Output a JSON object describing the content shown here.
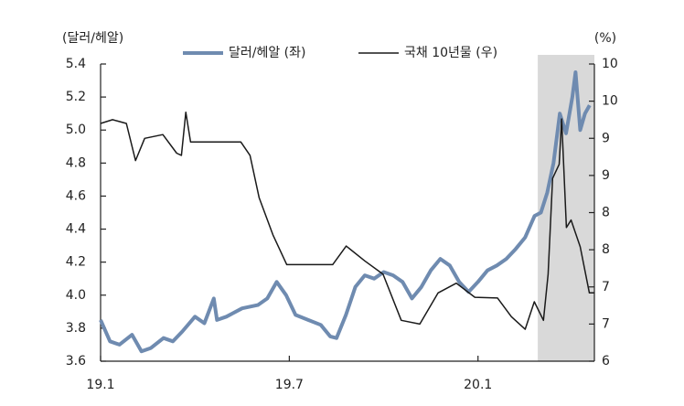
{
  "chart_data": {
    "type": "line",
    "y_label": "(달러/헤알)",
    "y2_label": "(%)",
    "xlim": [
      0,
      15.7
    ],
    "xticks": [
      {
        "value": 0,
        "label": "19.1"
      },
      {
        "value": 6,
        "label": "19.7"
      },
      {
        "value": 12,
        "label": "20.1"
      }
    ],
    "ylim": [
      3.6,
      5.4
    ],
    "yticks": [
      3.6,
      3.8,
      {
        "value": 4,
        "label": "4.0"
      },
      4.2,
      4.4,
      4.6,
      4.8,
      {
        "value": 5,
        "label": "5.0"
      },
      5.2,
      5.4
    ],
    "y2lim": [
      6,
      10
    ],
    "y2ticks": [
      6,
      {
        "value": 6.5,
        "label": "7"
      },
      7,
      {
        "value": 7.5,
        "label": "8"
      },
      8,
      {
        "value": 8.5,
        "label": "9"
      },
      9,
      {
        "value": 9.5,
        "label": "10"
      },
      10
    ],
    "highlight_xlim": [
      13.9,
      15.7
    ],
    "highlight_color": "#d9d9d9",
    "series": [
      {
        "name": "달러/헤알 (좌)",
        "color": "#6f8bb0",
        "width": 4,
        "x": [
          0,
          0.3,
          0.6,
          1.0,
          1.3,
          1.6,
          2.0,
          2.3,
          2.6,
          3.0,
          3.3,
          3.6,
          3.7,
          4.0,
          4.5,
          5.0,
          5.3,
          5.6,
          5.9,
          6.2,
          6.6,
          7.0,
          7.3,
          7.5,
          7.8,
          8.1,
          8.4,
          8.7,
          9.0,
          9.3,
          9.6,
          9.9,
          10.2,
          10.5,
          10.8,
          11.1,
          11.4,
          11.7,
          12.0,
          12.3,
          12.6,
          12.9,
          13.2,
          13.5,
          13.8,
          14.0,
          14.2,
          14.4,
          14.6,
          14.8,
          15.0,
          15.1,
          15.25,
          15.4,
          15.55
        ],
        "values": [
          3.85,
          3.72,
          3.7,
          3.76,
          3.66,
          3.68,
          3.74,
          3.72,
          3.78,
          3.87,
          3.83,
          3.98,
          3.85,
          3.87,
          3.92,
          3.94,
          3.98,
          4.08,
          4.0,
          3.88,
          3.85,
          3.82,
          3.75,
          3.74,
          3.88,
          4.05,
          4.12,
          4.1,
          4.14,
          4.12,
          4.08,
          3.98,
          4.05,
          4.15,
          4.22,
          4.18,
          4.08,
          4.02,
          4.08,
          4.15,
          4.18,
          4.22,
          4.28,
          4.35,
          4.48,
          4.5,
          4.62,
          4.8,
          5.1,
          4.98,
          5.2,
          5.35,
          5.0,
          5.1,
          5.15
        ]
      },
      {
        "name": "국채 10년물 (우)",
        "color": "#1a1a1a",
        "width": 1.5,
        "axis": "y2",
        "x": [
          0,
          0.38,
          0.82,
          1.11,
          1.4,
          1.98,
          2.42,
          2.57,
          2.71,
          2.86,
          3.44,
          4.02,
          4.46,
          4.75,
          5.04,
          5.48,
          5.92,
          6.65,
          7.38,
          7.81,
          8.4,
          8.98,
          9.56,
          10.15,
          10.73,
          11.31,
          11.9,
          12.62,
          13.06,
          13.5,
          13.79,
          14.08,
          14.23,
          14.37,
          14.58,
          14.66,
          14.81,
          14.96,
          15.25,
          15.54,
          15.69
        ],
        "values": [
          9.2,
          9.25,
          9.2,
          8.7,
          9.0,
          9.05,
          8.8,
          8.77,
          9.35,
          8.95,
          8.95,
          8.95,
          8.95,
          8.77,
          8.2,
          7.7,
          7.3,
          7.3,
          7.3,
          7.55,
          7.35,
          7.17,
          6.55,
          6.5,
          6.92,
          7.05,
          6.86,
          6.85,
          6.6,
          6.43,
          6.8,
          6.55,
          7.17,
          8.46,
          8.65,
          9.26,
          7.8,
          7.9,
          7.54,
          6.92,
          6.92
        ]
      }
    ]
  }
}
